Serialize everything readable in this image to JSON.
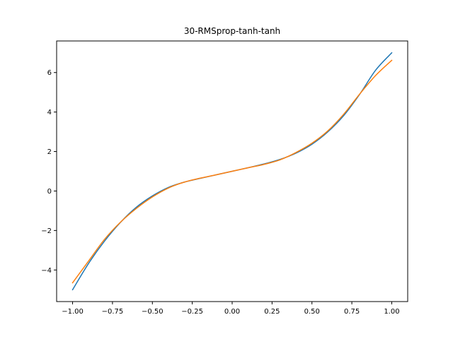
{
  "chart_data": {
    "type": "line",
    "title": "30-RMSprop-tanh-tanh",
    "xlabel": "",
    "ylabel": "",
    "xlim": [
      -1.1,
      1.1
    ],
    "ylim": [
      -5.6,
      7.6
    ],
    "grid": false,
    "x_ticks": [
      -1.0,
      -0.75,
      -0.5,
      -0.25,
      0.0,
      0.25,
      0.5,
      0.75,
      1.0
    ],
    "x_tick_labels": [
      "−1.00",
      "−0.75",
      "−0.50",
      "−0.25",
      "0.00",
      "0.25",
      "0.50",
      "0.75",
      "1.00"
    ],
    "y_ticks": [
      -4,
      -2,
      0,
      2,
      4,
      6
    ],
    "y_tick_labels": [
      "−4",
      "−2",
      "0",
      "2",
      "4",
      "6"
    ],
    "series": [
      {
        "color": "#1f77b4",
        "x": [
          -1.0,
          -0.9,
          -0.8,
          -0.7,
          -0.6,
          -0.5,
          -0.4,
          -0.3,
          -0.2,
          -0.1,
          0.0,
          0.1,
          0.2,
          0.3,
          0.4,
          0.5,
          0.6,
          0.7,
          0.8,
          0.9,
          1.0
        ],
        "values": [
          -5.0,
          -3.67,
          -2.54,
          -1.59,
          -0.82,
          -0.25,
          0.18,
          0.45,
          0.64,
          0.82,
          1.0,
          1.18,
          1.37,
          1.6,
          1.92,
          2.37,
          3.0,
          3.83,
          4.91,
          6.13,
          7.0
        ]
      },
      {
        "color": "#ff7f0e",
        "x": [
          -1.0,
          -0.9,
          -0.8,
          -0.7,
          -0.6,
          -0.5,
          -0.4,
          -0.3,
          -0.2,
          -0.1,
          0.0,
          0.1,
          0.2,
          0.3,
          0.4,
          0.5,
          0.6,
          0.7,
          0.8,
          0.9,
          1.0
        ],
        "values": [
          -4.65,
          -3.55,
          -2.45,
          -1.58,
          -0.88,
          -0.3,
          0.15,
          0.45,
          0.65,
          0.82,
          1.0,
          1.18,
          1.35,
          1.58,
          1.95,
          2.42,
          3.05,
          3.9,
          4.92,
          5.86,
          6.62
        ]
      }
    ]
  }
}
